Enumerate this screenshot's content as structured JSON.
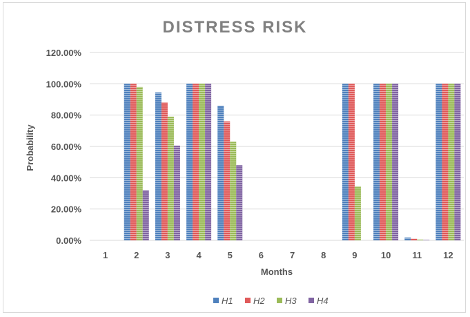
{
  "chart_data": {
    "type": "bar",
    "title": "DISTRESS RISK",
    "xlabel": "Months",
    "ylabel": "Probability",
    "ylim": [
      0,
      1.2
    ],
    "yticks": [
      "0.00%",
      "20.00%",
      "40.00%",
      "60.00%",
      "80.00%",
      "100.00%",
      "120.00%"
    ],
    "categories": [
      "1",
      "2",
      "3",
      "4",
      "5",
      "6",
      "7",
      "8",
      "9",
      "10",
      "11",
      "12"
    ],
    "grid": true,
    "legend_position": "bottom",
    "series": [
      {
        "name": "H1",
        "color": "#4f81bd",
        "values": [
          0,
          1.0,
          0.945,
          1.0,
          0.86,
          0,
          0,
          0,
          1.0,
          1.0,
          0.018,
          1.0
        ]
      },
      {
        "name": "H2",
        "color": "#e05a5a",
        "values": [
          0,
          1.0,
          0.88,
          1.0,
          0.76,
          0,
          0,
          0,
          1.0,
          1.0,
          0.01,
          1.0
        ]
      },
      {
        "name": "H3",
        "color": "#9bbb59",
        "values": [
          0,
          0.98,
          0.79,
          1.0,
          0.63,
          0,
          0,
          0,
          0.345,
          1.0,
          0.005,
          1.0
        ]
      },
      {
        "name": "H4",
        "color": "#8064a2",
        "values": [
          0,
          0.32,
          0.605,
          1.0,
          0.48,
          0,
          0,
          0,
          0,
          1.0,
          0.003,
          1.0
        ]
      }
    ]
  }
}
